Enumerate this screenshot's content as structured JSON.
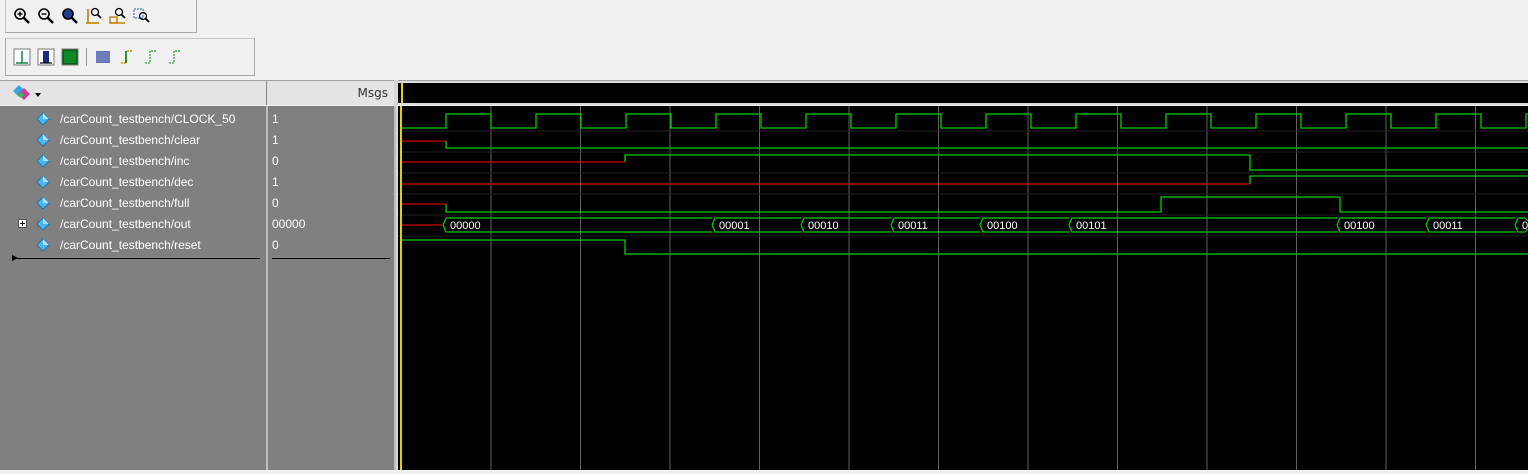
{
  "header": {
    "msgs_label": "Msgs"
  },
  "toolbar1": {
    "buttons": [
      "zoom-in-icon",
      "zoom-out-icon",
      "zoom-full-icon",
      "zoom-cursor-icon",
      "zoom-range-icon",
      "zoom-select-icon"
    ]
  },
  "toolbar2": {
    "buttons": [
      "wave-line-icon",
      "wave-bar-icon",
      "wave-fill-icon",
      "wave-pattern-icon",
      "edge-rise-icon",
      "edge-fall-icon",
      "edge-both-icon"
    ]
  },
  "signals": [
    {
      "name": "/carCount_testbench/CLOCK_50",
      "value": "1",
      "expandable": false
    },
    {
      "name": "/carCount_testbench/clear",
      "value": "1",
      "expandable": false
    },
    {
      "name": "/carCount_testbench/inc",
      "value": "0",
      "expandable": false
    },
    {
      "name": "/carCount_testbench/dec",
      "value": "1",
      "expandable": false
    },
    {
      "name": "/carCount_testbench/full",
      "value": "0",
      "expandable": false
    },
    {
      "name": "/carCount_testbench/out",
      "value": "00000",
      "expandable": true
    },
    {
      "name": "/carCount_testbench/reset",
      "value": "0",
      "expandable": false
    }
  ],
  "bus_labels": [
    "00000",
    "00001",
    "00010",
    "00011",
    "00100",
    "00101",
    "00100",
    "00011",
    "0"
  ],
  "colors": {
    "signal_high": "#00d000",
    "signal_undefined": "#d00000",
    "grid": "#606060",
    "cursor": "#e0d000",
    "bus_text": "#ffffff"
  }
}
